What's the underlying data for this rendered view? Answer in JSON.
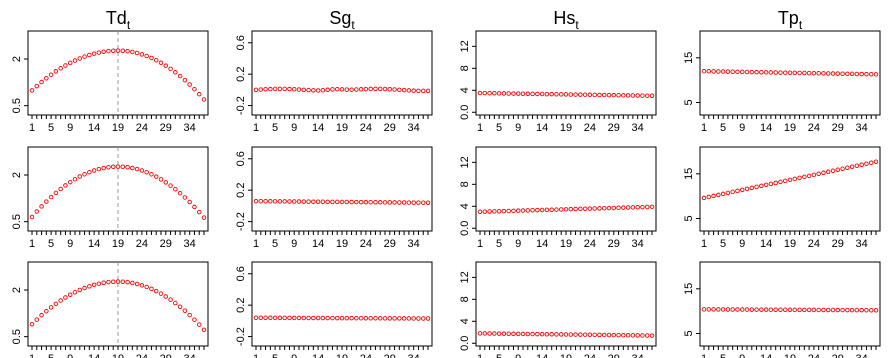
{
  "chart_data": {
    "type": "scatter",
    "columns": [
      {
        "title_main": "Td",
        "title_sub": "t"
      },
      {
        "title_main": "Sg",
        "title_sub": "t"
      },
      {
        "title_main": "Hs",
        "title_sub": "t"
      },
      {
        "title_main": "Tp",
        "title_sub": "t"
      }
    ],
    "x_range": [
      1,
      37
    ],
    "x_ticks": [
      1,
      5,
      9,
      14,
      19,
      24,
      29,
      34
    ],
    "marker_color": "#ff0000",
    "vline_color": "#999999",
    "panels": [
      {
        "row": 0,
        "col": 0,
        "ylim": [
          0.2,
          2.9
        ],
        "yticks": [
          0.5,
          2.0
        ],
        "vline_x": 19,
        "series": {
          "kind": "parabola",
          "peak_x": 19,
          "peak_y": 2.27,
          "end_y_first": 0.99,
          "end_y_last": 0.7
        }
      },
      {
        "row": 0,
        "col": 1,
        "ylim": [
          -0.32,
          0.75
        ],
        "yticks": [
          -0.2,
          0.2,
          0.6
        ],
        "series": {
          "kind": "wavy",
          "base": 0.0,
          "amp": 0.013,
          "bump_x": 17.5,
          "bump_amp": 0.02
        }
      },
      {
        "row": 0,
        "col": 2,
        "ylim": [
          -0.5,
          14.8
        ],
        "yticks": [
          0,
          4,
          8,
          12
        ],
        "series": {
          "kind": "linear",
          "start": 3.5,
          "end": 3.0
        }
      },
      {
        "row": 0,
        "col": 3,
        "ylim": [
          2.2,
          21.0
        ],
        "yticks": [
          5,
          15
        ],
        "series": {
          "kind": "linear",
          "start": 12.0,
          "end": 11.3
        }
      },
      {
        "row": 1,
        "col": 0,
        "ylim": [
          0.2,
          2.9
        ],
        "yticks": [
          0.5,
          2.0
        ],
        "vline_x": 19,
        "series": {
          "kind": "parabola",
          "peak_x": 19,
          "peak_y": 2.27,
          "end_y_first": 0.65,
          "end_y_last": 0.63
        }
      },
      {
        "row": 1,
        "col": 1,
        "ylim": [
          -0.32,
          0.75
        ],
        "yticks": [
          -0.2,
          0.2,
          0.6
        ],
        "series": {
          "kind": "linear",
          "start": 0.06,
          "end": 0.04
        }
      },
      {
        "row": 1,
        "col": 2,
        "ylim": [
          -0.5,
          14.8
        ],
        "yticks": [
          0,
          4,
          8,
          12
        ],
        "series": {
          "kind": "linear",
          "start": 3.0,
          "end": 3.9
        }
      },
      {
        "row": 1,
        "col": 3,
        "ylim": [
          2.2,
          21.0
        ],
        "yticks": [
          5,
          15
        ],
        "series": {
          "kind": "linear",
          "start": 9.6,
          "end": 17.7
        }
      },
      {
        "row": 2,
        "col": 0,
        "ylim": [
          0.2,
          2.9
        ],
        "yticks": [
          0.5,
          2.0
        ],
        "vline_x": 19,
        "series": {
          "kind": "parabola",
          "peak_x": 19,
          "peak_y": 2.27,
          "end_y_first": 0.9,
          "end_y_last": 0.72
        }
      },
      {
        "row": 2,
        "col": 1,
        "ylim": [
          -0.32,
          0.75
        ],
        "yticks": [
          -0.2,
          0.2,
          0.6
        ],
        "series": {
          "kind": "linear",
          "start": 0.04,
          "end": 0.03
        }
      },
      {
        "row": 2,
        "col": 2,
        "ylim": [
          -0.5,
          14.8
        ],
        "yticks": [
          0,
          4,
          8,
          12
        ],
        "series": {
          "kind": "linear",
          "start": 1.8,
          "end": 1.4
        }
      },
      {
        "row": 2,
        "col": 3,
        "ylim": [
          2.2,
          21.0
        ],
        "yticks": [
          5,
          15
        ],
        "series": {
          "kind": "linear",
          "start": 10.4,
          "end": 10.2
        }
      }
    ]
  }
}
